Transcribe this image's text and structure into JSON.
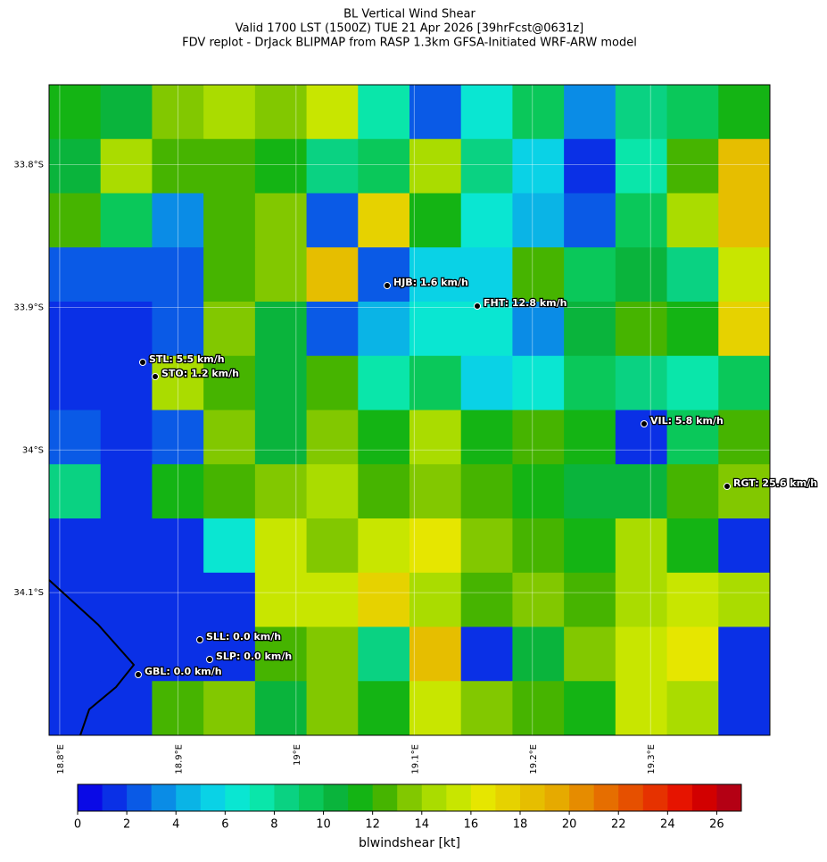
{
  "chart_data": {
    "type": "heatmap",
    "title": [
      "BL Vertical Wind Shear",
      "Valid 1700 LST (1500Z) TUE 21 Apr 2026 [39hrFcst@0631z]",
      "FDV replot - DrJack BLIPMAP from RASP 1.3km GFSA-Initiated WRF-ARW model"
    ],
    "xlim": [
      18.791,
      19.401
    ],
    "ylim": [
      -34.2,
      -33.744
    ],
    "xticks": [
      {
        "value": 18.8,
        "label": "18.8°E"
      },
      {
        "value": 18.9,
        "label": "18.9°E"
      },
      {
        "value": 19.0,
        "label": "19°E"
      },
      {
        "value": 19.1,
        "label": "19.1°E"
      },
      {
        "value": 19.2,
        "label": "19.2°E"
      },
      {
        "value": 19.3,
        "label": "19.3°E"
      }
    ],
    "yticks": [
      {
        "value": -33.8,
        "label": "33.8°S"
      },
      {
        "value": -33.9,
        "label": "33.9°S"
      },
      {
        "value": -34.0,
        "label": "34°S"
      },
      {
        "value": -34.1,
        "label": "34.1°S"
      }
    ],
    "grid": true,
    "values": [
      [
        11,
        10,
        13,
        14,
        13,
        15,
        7,
        2,
        6,
        9,
        3,
        8,
        9,
        11
      ],
      [
        10,
        14,
        12,
        12,
        11,
        8,
        9,
        14,
        8,
        5,
        1,
        7,
        12,
        18
      ],
      [
        12,
        9,
        3,
        12,
        13,
        2,
        17,
        11,
        6,
        4,
        2,
        9,
        14,
        18
      ],
      [
        2,
        2,
        2,
        12,
        13,
        18,
        2,
        5,
        5,
        12,
        9,
        10,
        8,
        15
      ],
      [
        1,
        1,
        2,
        13,
        10,
        2,
        4,
        6,
        6,
        3,
        10,
        12,
        11,
        17
      ],
      [
        1,
        1,
        14,
        12,
        10,
        12,
        7,
        9,
        5,
        6,
        9,
        8,
        7,
        9
      ],
      [
        2,
        1,
        2,
        13,
        10,
        13,
        11,
        14,
        11,
        12,
        11,
        1,
        9,
        12
      ],
      [
        8,
        1,
        11,
        12,
        13,
        14,
        12,
        13,
        12,
        11,
        10,
        10,
        12,
        13
      ],
      [
        1,
        1,
        1,
        6,
        15,
        13,
        15,
        16,
        13,
        12,
        11,
        14,
        11,
        1
      ],
      [
        1,
        1,
        1,
        1,
        15,
        15,
        17,
        14,
        12,
        13,
        12,
        14,
        15,
        14
      ],
      [
        1,
        1,
        1,
        1,
        12,
        13,
        8,
        18,
        1,
        10,
        13,
        15,
        16,
        1
      ],
      [
        1,
        1,
        12,
        13,
        10,
        13,
        11,
        15,
        13,
        12,
        11,
        15,
        14,
        1
      ]
    ],
    "stations": [
      "HJB: 1.6 km/h",
      "FHT: 12.8 km/h",
      "STL: 5.5 km/h",
      "STO: 1.2 km/h",
      "VIL: 5.8 km/h",
      "RGT: 25.6 km/h",
      "SLL: 0.0 km/h",
      "SLP: 0.0 km/h",
      "GBL: 0.0 km/h"
    ],
    "colorbar": {
      "label": "blwindshear [kt]",
      "lim": [
        0,
        27
      ],
      "ticks": [
        0,
        2,
        4,
        6,
        8,
        10,
        12,
        14,
        16,
        18,
        20,
        22,
        24,
        26
      ],
      "colors": [
        "#0a0ae6",
        "#0a30e6",
        "#0a5ae6",
        "#0a8ce6",
        "#0ab4e6",
        "#0ad2e6",
        "#0ae6d2",
        "#0ae6aa",
        "#0ad282",
        "#0ac85a",
        "#0ab43c",
        "#14b414",
        "#46b400",
        "#82c800",
        "#aadc00",
        "#c8e600",
        "#e6e600",
        "#e6d200",
        "#e6be00",
        "#e6aa00",
        "#e68c00",
        "#e66e00",
        "#e65000",
        "#e63200",
        "#e61400",
        "#d20000",
        "#b40014"
      ]
    }
  }
}
